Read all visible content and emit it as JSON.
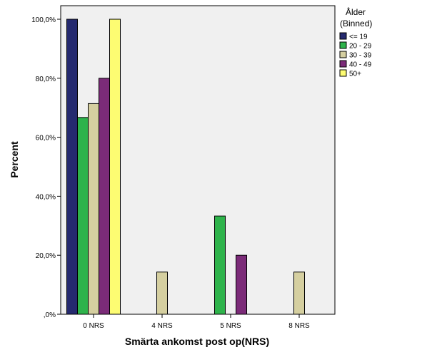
{
  "chart_data": {
    "type": "bar",
    "xlabel": "Smärta ankomst post op(NRS)",
    "ylabel": "Percent",
    "categories": [
      "0 NRS",
      "4 NRS",
      "5 NRS",
      "8 NRS"
    ],
    "ylim": [
      0,
      100
    ],
    "yticks": [
      0,
      20,
      40,
      60,
      80,
      100
    ],
    "ytick_labels": [
      ",0%",
      "20,0%",
      "40,0%",
      "60,0%",
      "80,0%",
      "100,0%"
    ],
    "grid": false,
    "legend": {
      "title_lines": [
        "Ålder",
        "(Binned)"
      ],
      "position": "right"
    },
    "series": [
      {
        "name": "<= 19",
        "color": "#252a6f",
        "values": [
          100,
          0,
          0,
          0
        ]
      },
      {
        "name": "20 - 29",
        "color": "#2eb34b",
        "values": [
          66.7,
          0,
          33.3,
          0
        ]
      },
      {
        "name": "30 - 39",
        "color": "#d5cfa0",
        "values": [
          71.4,
          14.3,
          0,
          14.3
        ]
      },
      {
        "name": "40 - 49",
        "color": "#7b2b78",
        "values": [
          80,
          0,
          20,
          0
        ]
      },
      {
        "name": "50+",
        "color": "#fdfc72",
        "values": [
          100,
          0,
          0,
          0
        ]
      }
    ],
    "plot_background": "#f0f0f0"
  }
}
